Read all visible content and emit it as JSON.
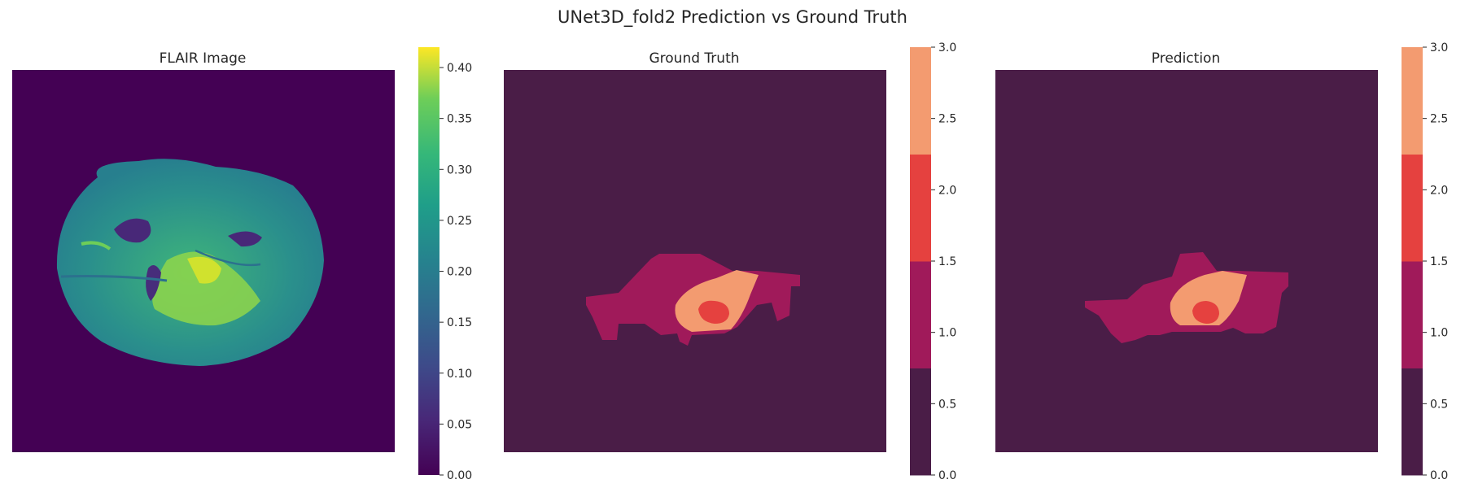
{
  "figure": {
    "title": "UNet3D_fold2 Prediction vs Ground Truth"
  },
  "chart_data": [
    {
      "type": "heatmap",
      "title": "FLAIR Image",
      "colormap": "viridis",
      "colorbar": {
        "range": [
          0,
          0.42
        ],
        "ticks": [
          "0.00",
          "0.05",
          "0.10",
          "0.15",
          "0.20",
          "0.25",
          "0.30",
          "0.35",
          "0.40"
        ]
      },
      "content": "axial brain MRI slice"
    },
    {
      "type": "heatmap",
      "title": "Ground Truth",
      "colormap": "rocket",
      "classes": [
        0,
        1,
        2,
        3
      ],
      "class_colors": [
        "#4a1d47",
        "#a01a5a",
        "#e5413f",
        "#f39b70"
      ],
      "colorbar": {
        "range": [
          0,
          3
        ],
        "ticks": [
          "0.0",
          "0.5",
          "1.0",
          "1.5",
          "2.0",
          "2.5",
          "3.0"
        ]
      }
    },
    {
      "type": "heatmap",
      "title": "Prediction",
      "colormap": "rocket",
      "classes": [
        0,
        1,
        2,
        3
      ],
      "class_colors": [
        "#4a1d47",
        "#a01a5a",
        "#e5413f",
        "#f39b70"
      ],
      "colorbar": {
        "range": [
          0,
          3
        ],
        "ticks": [
          "0.0",
          "0.5",
          "1.0",
          "1.5",
          "2.0",
          "2.5",
          "3.0"
        ]
      }
    }
  ]
}
